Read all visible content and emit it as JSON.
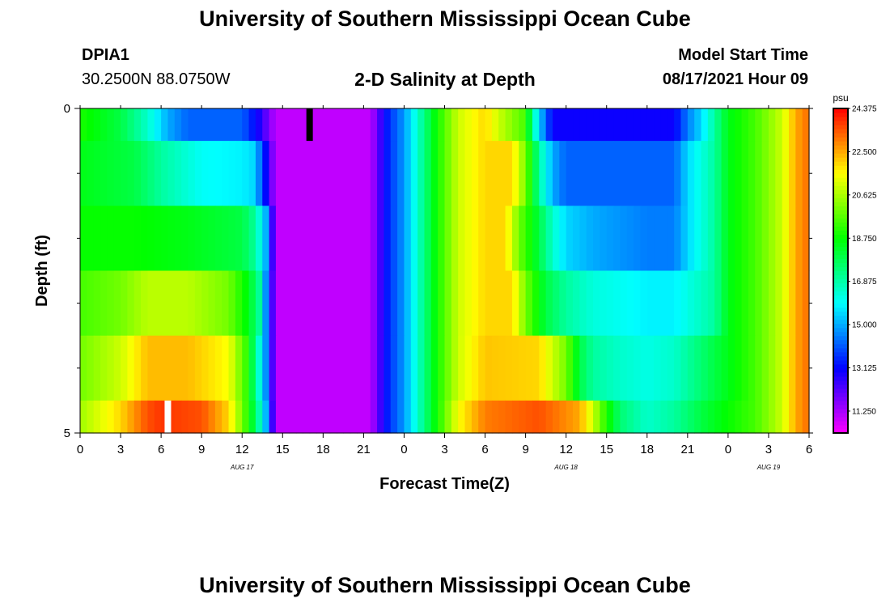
{
  "page": {
    "title_top": "University of Southern Mississippi Ocean Cube",
    "title_bottom": "University of Southern Mississippi Ocean Cube",
    "station_id": "DPIA1",
    "station_coords": "30.2500N  88.0750W",
    "plot_title": "2-D Salinity at Depth",
    "model_start_label": "Model Start Time",
    "model_start_value": "08/17/2021 Hour 09"
  },
  "chart_data": {
    "type": "heatmap",
    "title": "2-D Salinity at Depth",
    "xlabel": "Forecast Time(Z)",
    "ylabel": "Depth (ft)",
    "x_range_hours": [
      0,
      54
    ],
    "x_tick_hours": [
      0,
      3,
      6,
      9,
      12,
      15,
      18,
      21,
      24,
      27,
      30,
      33,
      36,
      39,
      42,
      45,
      48,
      51,
      54
    ],
    "x_tick_labels": [
      "0",
      "3",
      "6",
      "9",
      "12",
      "15",
      "18",
      "21",
      "0",
      "3",
      "6",
      "9",
      "12",
      "15",
      "18",
      "21",
      "0",
      "3",
      "6"
    ],
    "date_labels": [
      {
        "text": "AUG 17",
        "hour": 12
      },
      {
        "text": "AUG 18",
        "hour": 36
      },
      {
        "text": "AUG 19",
        "hour": 51
      }
    ],
    "y_range_ft": [
      0,
      5
    ],
    "y_tick_labels": [
      "0",
      "5"
    ],
    "y_minor_ticks_ft": [
      1,
      2,
      3,
      4
    ],
    "depth_layers_ft": [
      0,
      0.5,
      1.5,
      2.5,
      3.5,
      4.5,
      5
    ],
    "colorbar": {
      "unit": "psu",
      "min": 10.3,
      "max": 24.375,
      "tick_values": [
        24.375,
        22.5,
        20.625,
        18.75,
        16.875,
        15.0,
        13.125,
        11.25
      ],
      "tick_labels": [
        "24.375",
        "22.500",
        "20.625",
        "18.750",
        "16.875",
        "15.000",
        "13.125",
        "11.250"
      ]
    },
    "markers": [
      {
        "type": "model-start",
        "hour": 17,
        "depth_from": 0,
        "depth_to": 0.5,
        "color": "#000000"
      },
      {
        "type": "gap",
        "hour": 6.5,
        "depth_from": 4.5,
        "depth_to": 5,
        "color": "#ffffff"
      }
    ],
    "rows": [
      {
        "depth_from": 0,
        "depth_to": 0.5,
        "keyframes": [
          [
            0,
            19.0
          ],
          [
            3,
            18.0
          ],
          [
            5,
            16.5
          ],
          [
            6.5,
            15.0
          ],
          [
            8,
            14.2
          ],
          [
            12,
            14.2
          ],
          [
            13.3,
            12.8
          ],
          [
            14.5,
            11.0
          ],
          [
            21.5,
            11.0
          ],
          [
            22.8,
            13.5
          ],
          [
            24,
            14.8
          ],
          [
            25,
            16.5
          ],
          [
            26.5,
            19.0
          ],
          [
            28,
            21.0
          ],
          [
            30,
            22.0
          ],
          [
            31,
            21.0
          ],
          [
            33,
            19.5
          ],
          [
            33.5,
            17.0
          ],
          [
            34,
            15.5
          ],
          [
            35,
            13.0
          ],
          [
            44,
            13.0
          ],
          [
            45,
            14.5
          ],
          [
            46,
            15.5
          ],
          [
            47,
            17.0
          ],
          [
            48,
            18.5
          ],
          [
            50,
            19.5
          ],
          [
            52,
            21.0
          ],
          [
            53,
            22.5
          ],
          [
            54,
            23.2
          ]
        ]
      },
      {
        "depth_from": 0.5,
        "depth_to": 1.5,
        "keyframes": [
          [
            0,
            18.5
          ],
          [
            4,
            18.0
          ],
          [
            6,
            17.0
          ],
          [
            9,
            16.0
          ],
          [
            12,
            15.8
          ],
          [
            12.9,
            15.5
          ],
          [
            13.4,
            14.2
          ],
          [
            14.5,
            11.0
          ],
          [
            21.5,
            11.0
          ],
          [
            22.8,
            13.5
          ],
          [
            24,
            14.8
          ],
          [
            25,
            16.5
          ],
          [
            26.5,
            19.0
          ],
          [
            28,
            21.0
          ],
          [
            30,
            22.0
          ],
          [
            32,
            22.0
          ],
          [
            33,
            20.0
          ],
          [
            34,
            17.0
          ],
          [
            35,
            15.0
          ],
          [
            36,
            14.2
          ],
          [
            44,
            14.2
          ],
          [
            45,
            15.5
          ],
          [
            47,
            17.0
          ],
          [
            48,
            18.5
          ],
          [
            50,
            19.5
          ],
          [
            52,
            21.0
          ],
          [
            53,
            22.5
          ],
          [
            54,
            23.2
          ]
        ]
      },
      {
        "depth_from": 1.5,
        "depth_to": 2.5,
        "keyframes": [
          [
            0,
            18.8
          ],
          [
            4,
            18.8
          ],
          [
            8,
            18.5
          ],
          [
            12,
            18.0
          ],
          [
            13,
            17.0
          ],
          [
            13.8,
            15.0
          ],
          [
            14.5,
            11.0
          ],
          [
            21.5,
            11.0
          ],
          [
            22.8,
            13.5
          ],
          [
            24,
            14.8
          ],
          [
            25,
            16.5
          ],
          [
            26.5,
            19.0
          ],
          [
            28,
            21.0
          ],
          [
            30,
            22.0
          ],
          [
            31.5,
            22.0
          ],
          [
            32.5,
            20.0
          ],
          [
            34,
            18.0
          ],
          [
            35,
            16.5
          ],
          [
            36,
            15.5
          ],
          [
            38,
            15.0
          ],
          [
            42,
            14.5
          ],
          [
            44,
            14.5
          ],
          [
            45,
            15.5
          ],
          [
            47,
            17.0
          ],
          [
            48,
            18.5
          ],
          [
            50,
            19.5
          ],
          [
            52,
            21.0
          ],
          [
            53,
            22.5
          ],
          [
            54,
            23.2
          ]
        ]
      },
      {
        "depth_from": 2.5,
        "depth_to": 3.5,
        "keyframes": [
          [
            0,
            19.5
          ],
          [
            3,
            20.0
          ],
          [
            5,
            20.8
          ],
          [
            8,
            20.8
          ],
          [
            11,
            20.0
          ],
          [
            12.5,
            18.5
          ],
          [
            13.3,
            17.0
          ],
          [
            14.5,
            11.0
          ],
          [
            21.5,
            11.0
          ],
          [
            22.8,
            13.5
          ],
          [
            24,
            14.8
          ],
          [
            25,
            16.5
          ],
          [
            26.5,
            19.0
          ],
          [
            28,
            21.0
          ],
          [
            30,
            22.0
          ],
          [
            32,
            22.0
          ],
          [
            33,
            20.0
          ],
          [
            34.5,
            18.0
          ],
          [
            36,
            17.0
          ],
          [
            38,
            16.3
          ],
          [
            42,
            15.8
          ],
          [
            44,
            15.8
          ],
          [
            45,
            16.2
          ],
          [
            47,
            17.0
          ],
          [
            48,
            18.5
          ],
          [
            50,
            19.5
          ],
          [
            52,
            21.0
          ],
          [
            53,
            22.5
          ],
          [
            54,
            23.2
          ]
        ]
      },
      {
        "depth_from": 3.5,
        "depth_to": 4.5,
        "keyframes": [
          [
            0,
            20.0
          ],
          [
            3,
            21.0
          ],
          [
            5,
            22.3
          ],
          [
            8,
            22.3
          ],
          [
            11,
            21.5
          ],
          [
            12.5,
            19.0
          ],
          [
            13,
            17.0
          ],
          [
            13.6,
            15.5
          ],
          [
            14.5,
            11.0
          ],
          [
            21.5,
            11.0
          ],
          [
            22.8,
            13.5
          ],
          [
            24,
            14.8
          ],
          [
            25,
            16.5
          ],
          [
            26.5,
            19.0
          ],
          [
            28,
            21.0
          ],
          [
            30,
            22.2
          ],
          [
            34,
            22.0
          ],
          [
            36,
            20.0
          ],
          [
            37,
            18.0
          ],
          [
            38,
            17.0
          ],
          [
            40,
            16.5
          ],
          [
            42,
            16.2
          ],
          [
            44,
            16.5
          ],
          [
            46,
            17.5
          ],
          [
            48,
            18.5
          ],
          [
            50,
            19.5
          ],
          [
            52,
            21.0
          ],
          [
            53,
            22.5
          ],
          [
            54,
            23.2
          ]
        ]
      },
      {
        "depth_from": 4.5,
        "depth_to": 5,
        "keyframes": [
          [
            0,
            20.5
          ],
          [
            3,
            22.0
          ],
          [
            5,
            23.5
          ],
          [
            6,
            23.8
          ],
          [
            9,
            23.5
          ],
          [
            11,
            22.0
          ],
          [
            12.5,
            19.0
          ],
          [
            13.2,
            17.0
          ],
          [
            13.8,
            15.0
          ],
          [
            14.5,
            11.0
          ],
          [
            21.5,
            11.0
          ],
          [
            22.8,
            13.5
          ],
          [
            24,
            14.8
          ],
          [
            25,
            16.5
          ],
          [
            26.5,
            19.0
          ],
          [
            28,
            21.5
          ],
          [
            30,
            23.0
          ],
          [
            34,
            23.5
          ],
          [
            37,
            22.5
          ],
          [
            38,
            21.0
          ],
          [
            39,
            19.0
          ],
          [
            40,
            17.5
          ],
          [
            42,
            16.5
          ],
          [
            44,
            17.0
          ],
          [
            46,
            18.0
          ],
          [
            48,
            18.8
          ],
          [
            50,
            19.5
          ],
          [
            52,
            21.0
          ],
          [
            53,
            22.5
          ],
          [
            54,
            23.2
          ]
        ]
      }
    ]
  }
}
